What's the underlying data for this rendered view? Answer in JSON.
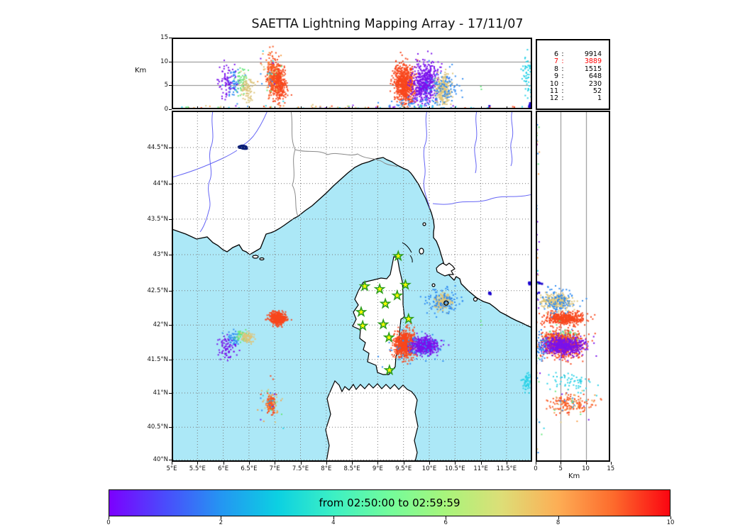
{
  "title": "SAETTA Lightning Mapping Array - 17/11/07",
  "time_range_label": "from 02:50:00 to 02:59:59",
  "stats_panel": {
    "description": "source counts per altitude km",
    "rows": [
      {
        "alt": "6",
        "count": "9914",
        "color": "#000000"
      },
      {
        "alt": "7",
        "count": "3889",
        "color": "#ff0000"
      },
      {
        "alt": "8",
        "count": "1515",
        "color": "#000000"
      },
      {
        "alt": "9",
        "count": "648",
        "color": "#000000"
      },
      {
        "alt": "10",
        "count": "230",
        "color": "#000000"
      },
      {
        "alt": "11",
        "count": "52",
        "color": "#000000"
      },
      {
        "alt": "12",
        "count": "1",
        "color": "#000000"
      }
    ]
  },
  "axes": {
    "alt_label": "Km",
    "alt_ticks": [
      0,
      5,
      10,
      15
    ],
    "alt_grid": [
      5,
      10
    ],
    "alt_range": [
      0,
      15
    ],
    "lon_ticks": {
      "values": [
        5,
        5.5,
        6,
        6.5,
        7,
        7.5,
        8,
        8.5,
        9,
        9.5,
        10,
        10.5,
        11,
        11.5
      ],
      "labels": [
        "5°E",
        "5.5°E",
        "6°E",
        "6.5°E",
        "7°E",
        "7.5°E",
        "8°E",
        "8.5°E",
        "9°E",
        "9.5°E",
        "10°E",
        "10.5°E",
        "11°E",
        "11.5°E"
      ]
    },
    "lat_ticks": {
      "values": [
        44.5,
        44,
        43.5,
        43,
        42.5,
        42,
        41.5,
        41,
        40.5,
        40
      ],
      "labels": [
        "44.5°N",
        "44°N",
        "43.5°N",
        "43°N",
        "42.5°N",
        "42°N",
        "41.5°N",
        "41°N",
        "40.5°N",
        "40°N"
      ]
    },
    "colorbar_ticks": [
      0,
      2,
      4,
      6,
      8,
      10
    ],
    "colorbar_range": [
      0,
      10
    ]
  },
  "colors": {
    "sea": "#ace8f7",
    "land": "#ffffff",
    "river": "#6666f5",
    "admin_border": "#8a8a8a",
    "coast": "#000000",
    "grid": "#7a7a7a",
    "panel_grid": "#888888",
    "star_fill": "#ffff00",
    "star_edge": "#2e9e20",
    "lake": "#0a1e78",
    "highlight_red": "#ff0000"
  },
  "colorbar_stops": [
    "#7c00fe",
    "#4a4cfc",
    "#2496f2",
    "#0cd0e2",
    "#3cf0c4",
    "#73fc9b",
    "#a8f57b",
    "#ddde77",
    "#fdae55",
    "#fd6a2c",
    "#fb0511"
  ],
  "chart_data": {
    "type": "scatter",
    "subtype": "lightning-mapping-array",
    "panels": [
      "altitude-vs-longitude",
      "map-lon-lat",
      "altitude-vs-latitude"
    ],
    "lon_range": [
      5,
      12
    ],
    "lat_range": [
      40,
      45.17
    ],
    "alt_range_km": [
      0,
      15
    ],
    "time_color_palette": [
      "#7a12ec",
      "#2f8bf2",
      "#2bd1e6",
      "#67e87d",
      "#dcc57c",
      "#f7a04c",
      "#f8471d"
    ],
    "counts_by_altitude_km": {
      "6": 9914,
      "7": 3889,
      "8": 1515,
      "9": 648,
      "10": 230,
      "11": 52,
      "12": 1
    },
    "stations": [
      {
        "lon": 9.37,
        "lat": 43.0
      },
      {
        "lon": 8.72,
        "lat": 42.58
      },
      {
        "lon": 9.01,
        "lat": 42.54
      },
      {
        "lon": 9.51,
        "lat": 42.6
      },
      {
        "lon": 9.35,
        "lat": 42.45
      },
      {
        "lon": 9.12,
        "lat": 42.33
      },
      {
        "lon": 8.65,
        "lat": 42.21
      },
      {
        "lon": 9.57,
        "lat": 42.11
      },
      {
        "lon": 8.68,
        "lat": 42.01
      },
      {
        "lon": 9.08,
        "lat": 42.03
      },
      {
        "lon": 9.19,
        "lat": 41.84
      },
      {
        "lon": 9.2,
        "lat": 41.36
      }
    ],
    "circle_marker": {
      "lon": 10.3,
      "lat": 42.34
    },
    "clusters": [
      {
        "name": "west-corsica-red-cell",
        "color": "#f8471d",
        "n": 420,
        "lon": 7.06,
        "lon_s": 0.07,
        "lat": 42.1,
        "lat_s": 0.045,
        "alt": 5.8,
        "alt_s": 2.0,
        "tilt": -0.01
      },
      {
        "name": "ligurian-blue",
        "color": "#2f8bf2",
        "n": 55,
        "lon": 6.22,
        "lon_s": 0.07,
        "lat": 41.8,
        "lat_s": 0.05,
        "alt": 5.2,
        "alt_s": 1.6
      },
      {
        "name": "ligurian-purple",
        "color": "#7a12ec",
        "n": 70,
        "lon": 6.09,
        "lon_s": 0.09,
        "lat": 41.67,
        "lat_s": 0.08,
        "alt": 6.0,
        "alt_s": 1.7
      },
      {
        "name": "ligurian-green",
        "color": "#67e87d",
        "n": 45,
        "lon": 6.36,
        "lon_s": 0.06,
        "lat": 41.84,
        "lat_s": 0.045,
        "alt": 6.2,
        "alt_s": 1.4
      },
      {
        "name": "ligurian-tan",
        "color": "#dcc57c",
        "n": 80,
        "lon": 6.46,
        "lon_s": 0.07,
        "lat": 41.82,
        "lat_s": 0.04,
        "alt": 4.4,
        "alt_s": 1.4
      },
      {
        "name": "east-corsica-red-cell",
        "color": "#f8471d",
        "n": 650,
        "lon": 9.52,
        "lon_s": 0.1,
        "lat": 41.72,
        "lat_s": 0.095,
        "alt": 5.2,
        "alt_s": 2.1,
        "tilt": -0.01
      },
      {
        "name": "east-corsica-purple-cell",
        "color": "#7a12ec",
        "n": 500,
        "lon": 9.92,
        "lon_s": 0.12,
        "lat": 41.7,
        "lat_s": 0.06,
        "alt": 5.6,
        "alt_s": 2.0,
        "tilt": 0.012
      },
      {
        "name": "east-low-blue",
        "color": "#2f8bf2",
        "n": 60,
        "lon": 9.75,
        "lon_s": 0.35,
        "lat": 41.7,
        "lat_s": 0.12,
        "alt": 1.0,
        "alt_s": 0.8
      },
      {
        "name": "elba-tan-cell",
        "color": "#dcc57c",
        "n": 260,
        "lon": 10.27,
        "lon_s": 0.08,
        "lat": 42.34,
        "lat_s": 0.06,
        "alt": 4.3,
        "alt_s": 1.5
      },
      {
        "name": "elba-blue-halo",
        "color": "#2f8bf2",
        "n": 110,
        "lon": 10.27,
        "lon_s": 0.16,
        "lat": 42.35,
        "lat_s": 0.09,
        "alt": 4.6,
        "alt_s": 2.0
      },
      {
        "name": "south-sardinia-red",
        "color": "#fa5a22",
        "n": 130,
        "lon": 6.93,
        "lon_s": 0.04,
        "lat": 40.83,
        "lat_s": 0.06,
        "alt": 6.5,
        "alt_s": 2.2
      },
      {
        "name": "south-sardinia-mixed",
        "multi": true,
        "n": 55,
        "lon": 6.92,
        "lon_s": 0.1,
        "lat": 40.85,
        "lat_s": 0.13,
        "alt": 7.0,
        "alt_s": 2.8
      },
      {
        "name": "far-east-cyan",
        "color": "#2bd1e6",
        "n": 60,
        "lon": 11.9,
        "lon_s": 0.045,
        "lat": 41.16,
        "lat_s": 0.075,
        "alt": 7.0,
        "alt_s": 2.3
      },
      {
        "name": "navy-dot-map-edge",
        "color": "#1c06cd",
        "n": 10,
        "lon": 11.945,
        "lon_s": 0.012,
        "lat": 42.605,
        "lat_s": 0.012,
        "alt": 0.5,
        "alt_s": 0.3,
        "size": 3
      },
      {
        "name": "navy-dot-capraia",
        "color": "#1c06cd",
        "n": 6,
        "lon": 11.17,
        "lon_s": 0.01,
        "lat": 42.465,
        "lat_s": 0.012,
        "alt": 0.4,
        "alt_s": 0.3,
        "size": 3
      },
      {
        "name": "lone-green-point",
        "color": "#67e87d",
        "n": 2,
        "lon": 11.0,
        "lon_s": 0.02,
        "lat": 42.02,
        "lat_s": 0.02,
        "alt": 4.4,
        "alt_s": 0.3
      },
      {
        "name": "ground-noise-lon",
        "multi": true,
        "n": 110,
        "uniform": "lon",
        "lon_min": 5.05,
        "lon_max": 11.95,
        "alt": 0.35,
        "alt_s": 0.25,
        "panels": [
          "top"
        ]
      },
      {
        "name": "ground-noise-lat",
        "multi": true,
        "n": 55,
        "uniform": "lat",
        "lat_min": 40.05,
        "lat_max": 45.1,
        "alt": 0.35,
        "alt_s": 0.25,
        "panels": [
          "right"
        ]
      }
    ]
  }
}
